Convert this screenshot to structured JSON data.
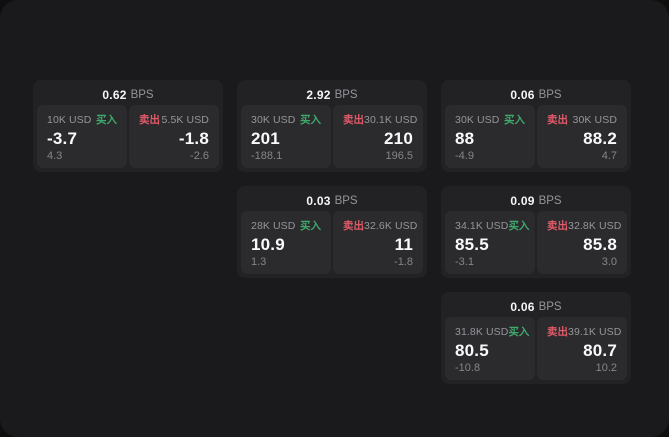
{
  "colors": {
    "outer_background": "#0e0e0f",
    "panel_background": "#1a1a1c",
    "card_background": "#222225",
    "tile_background": "#2b2b2e",
    "primary_text": "#f5f5f5",
    "muted_text": "#95959a",
    "delta_text": "#85858a",
    "buy_green": "#3fa96c",
    "sell_red": "#e05a68"
  },
  "labels": {
    "bps_unit": "BPS",
    "buy": "买入",
    "sell": "卖出"
  },
  "cards": [
    {
      "bps_value": "0.62",
      "grid": {
        "col": 1,
        "row": 1
      },
      "buy": {
        "amount": "10K USD",
        "price": "-3.7",
        "delta": "4.3"
      },
      "sell": {
        "amount": "5.5K USD",
        "price": "-1.8",
        "delta": "-2.6"
      }
    },
    {
      "bps_value": "2.92",
      "grid": {
        "col": 2,
        "row": 1
      },
      "buy": {
        "amount": "30K USD",
        "price": "201",
        "delta": "-188.1"
      },
      "sell": {
        "amount": "30.1K USD",
        "price": "210",
        "delta": "196.5"
      }
    },
    {
      "bps_value": "0.06",
      "grid": {
        "col": 3,
        "row": 1
      },
      "buy": {
        "amount": "30K USD",
        "price": "88",
        "delta": "-4.9"
      },
      "sell": {
        "amount": "30K USD",
        "price": "88.2",
        "delta": "4.7"
      }
    },
    {
      "bps_value": "0.03",
      "grid": {
        "col": 2,
        "row": 2
      },
      "buy": {
        "amount": "28K USD",
        "price": "10.9",
        "delta": "1.3"
      },
      "sell": {
        "amount": "32.6K USD",
        "price": "11",
        "delta": "-1.8"
      }
    },
    {
      "bps_value": "0.09",
      "grid": {
        "col": 3,
        "row": 2
      },
      "buy": {
        "amount": "34.1K USD",
        "price": "85.5",
        "delta": "-3.1"
      },
      "sell": {
        "amount": "32.8K USD",
        "price": "85.8",
        "delta": "3.0"
      }
    },
    {
      "bps_value": "0.06",
      "grid": {
        "col": 3,
        "row": 3
      },
      "buy": {
        "amount": "31.8K USD",
        "price": "80.5",
        "delta": "-10.8"
      },
      "sell": {
        "amount": "39.1K USD",
        "price": "80.7",
        "delta": "10.2"
      }
    }
  ]
}
